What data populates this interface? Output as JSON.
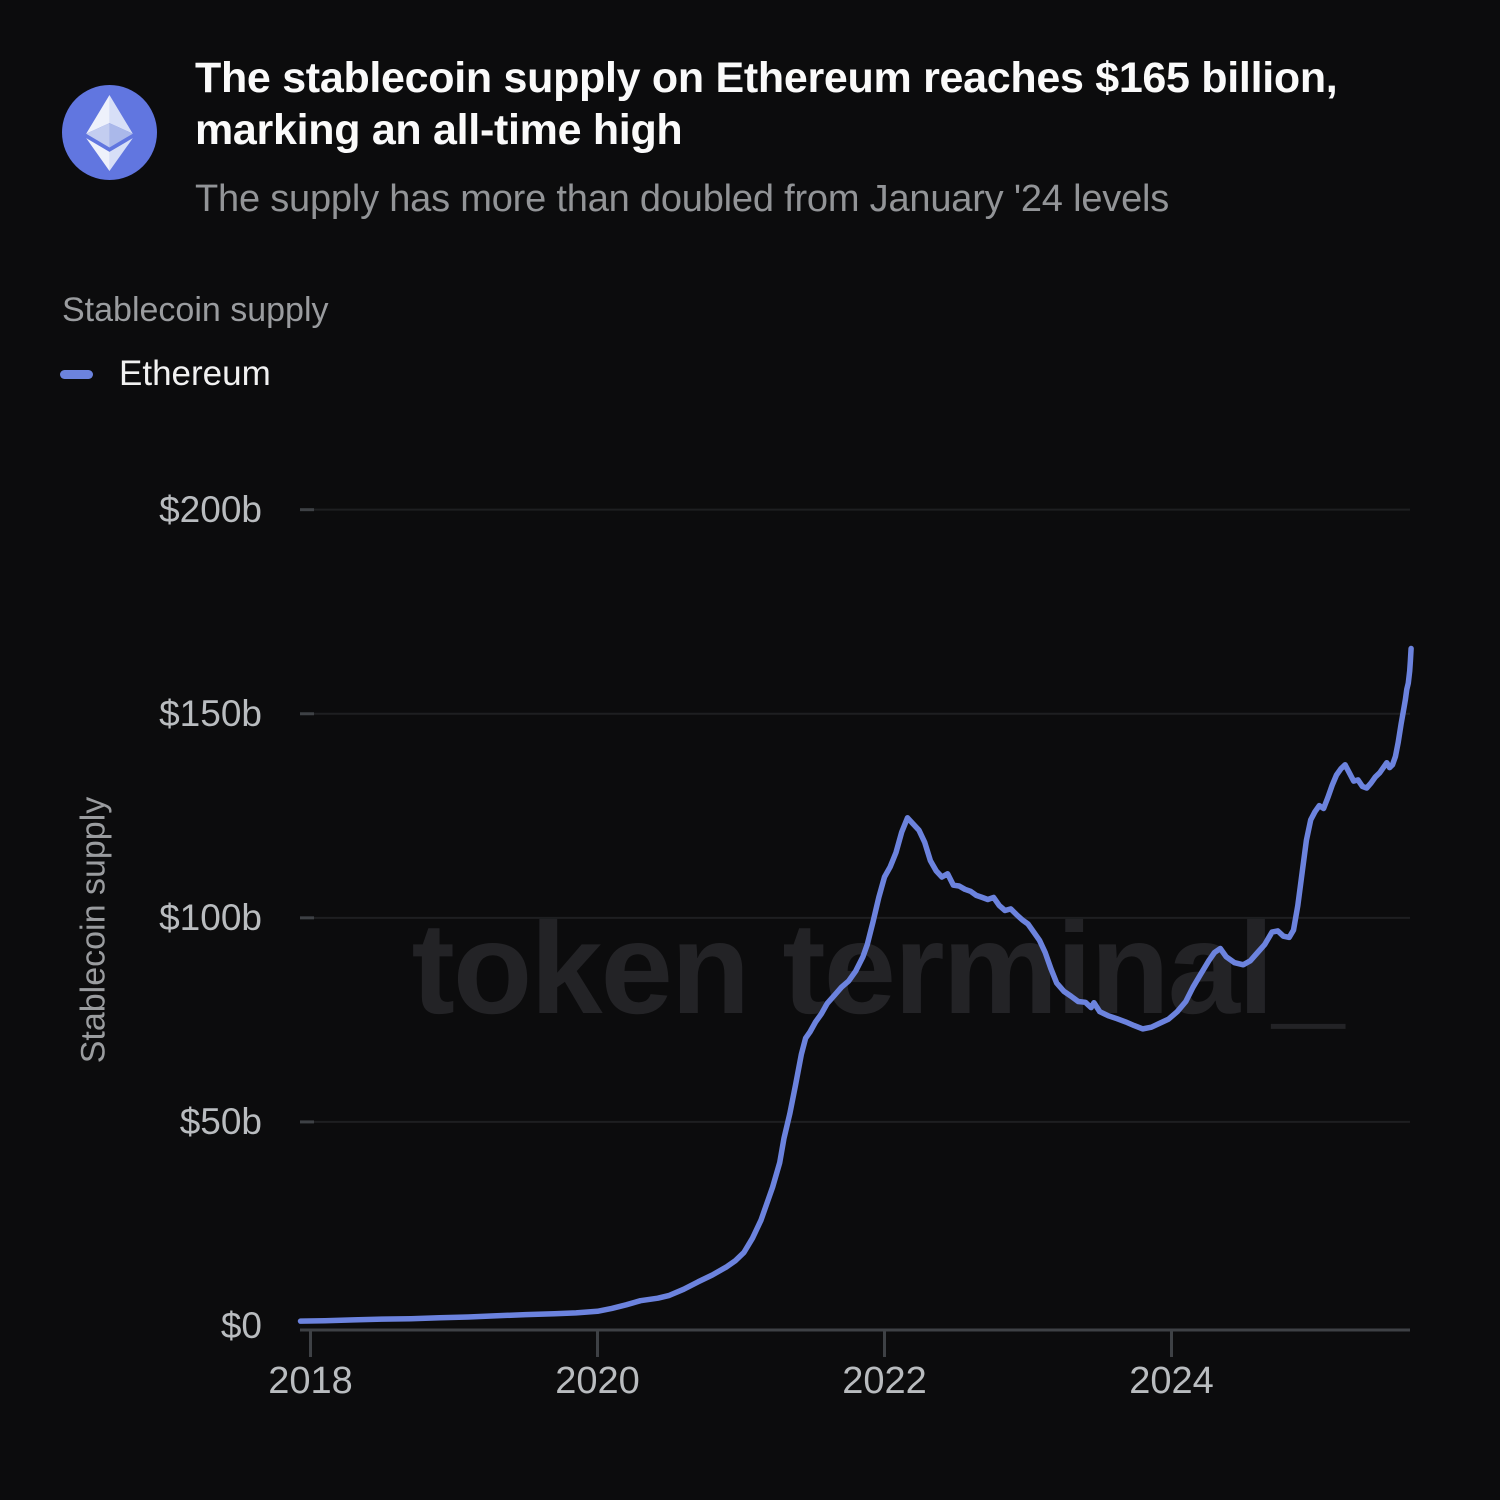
{
  "header": {
    "title": "The stablecoin supply on Ethereum reaches $165 billion,\nmarking an all-time high",
    "subtitle": "The supply has more than doubled from January '24 levels",
    "icon": "ethereum-logo"
  },
  "legend": {
    "title": "Stablecoin supply",
    "series_label": "Ethereum"
  },
  "watermark": "token terminal_",
  "colors": {
    "background": "#0c0c0d",
    "line": "#6c83de",
    "eth_circle": "#6176e0",
    "grid": "#1e1f21",
    "axis": "#3e4145",
    "tick_label": "#b9bcbf",
    "muted_text": "#9a9c9f",
    "subtitle_text": "#929497",
    "title_text": "#fafafa",
    "watermark": "#232326"
  },
  "chart_data": {
    "type": "line",
    "title": "Stablecoin supply",
    "ylabel": "Stablecoin supply",
    "xlabel": "",
    "unit": "USD billions",
    "grid": true,
    "legend_position": "top-left",
    "x_range": [
      2017.93,
      2025.67
    ],
    "y_range": [
      0,
      200
    ],
    "x_ticks": [
      2018,
      2020,
      2022,
      2024
    ],
    "y_ticks": [
      {
        "label": "$0",
        "value": 0
      },
      {
        "label": "$50b",
        "value": 50
      },
      {
        "label": "$100b",
        "value": 100
      },
      {
        "label": "$150b",
        "value": 150
      },
      {
        "label": "$200b",
        "value": 200
      }
    ],
    "series": [
      {
        "name": "Ethereum",
        "color": "#6c83de",
        "points": [
          [
            2017.93,
            1.2
          ],
          [
            2018.1,
            1.3
          ],
          [
            2018.3,
            1.5
          ],
          [
            2018.5,
            1.7
          ],
          [
            2018.7,
            1.8
          ],
          [
            2018.9,
            2.0
          ],
          [
            2019.1,
            2.2
          ],
          [
            2019.3,
            2.5
          ],
          [
            2019.5,
            2.8
          ],
          [
            2019.7,
            3.0
          ],
          [
            2019.85,
            3.2
          ],
          [
            2020.0,
            3.6
          ],
          [
            2020.1,
            4.3
          ],
          [
            2020.2,
            5.2
          ],
          [
            2020.3,
            6.2
          ],
          [
            2020.42,
            6.8
          ],
          [
            2020.5,
            7.5
          ],
          [
            2020.6,
            9.0
          ],
          [
            2020.7,
            10.8
          ],
          [
            2020.8,
            12.5
          ],
          [
            2020.9,
            14.5
          ],
          [
            2020.96,
            16.0
          ],
          [
            2021.02,
            18.0
          ],
          [
            2021.08,
            21.5
          ],
          [
            2021.14,
            26.0
          ],
          [
            2021.18,
            30.0
          ],
          [
            2021.22,
            34.0
          ],
          [
            2021.27,
            40.0
          ],
          [
            2021.3,
            46.0
          ],
          [
            2021.34,
            52.0
          ],
          [
            2021.38,
            59.0
          ],
          [
            2021.42,
            66.5
          ],
          [
            2021.45,
            70.5
          ],
          [
            2021.48,
            72.0
          ],
          [
            2021.52,
            74.5
          ],
          [
            2021.56,
            76.5
          ],
          [
            2021.6,
            79.0
          ],
          [
            2021.65,
            81.0
          ],
          [
            2021.7,
            83.0
          ],
          [
            2021.75,
            84.5
          ],
          [
            2021.8,
            87.0
          ],
          [
            2021.85,
            90.5
          ],
          [
            2021.88,
            93.5
          ],
          [
            2021.92,
            99.0
          ],
          [
            2021.96,
            105.0
          ],
          [
            2022.0,
            110.0
          ],
          [
            2022.04,
            112.5
          ],
          [
            2022.08,
            116.0
          ],
          [
            2022.12,
            121.0
          ],
          [
            2022.16,
            124.5
          ],
          [
            2022.2,
            123.0
          ],
          [
            2022.24,
            121.5
          ],
          [
            2022.28,
            118.5
          ],
          [
            2022.32,
            114.0
          ],
          [
            2022.36,
            111.5
          ],
          [
            2022.4,
            110.0
          ],
          [
            2022.44,
            110.8
          ],
          [
            2022.48,
            108.0
          ],
          [
            2022.52,
            107.8
          ],
          [
            2022.56,
            107.0
          ],
          [
            2022.6,
            106.5
          ],
          [
            2022.64,
            105.5
          ],
          [
            2022.68,
            105.0
          ],
          [
            2022.72,
            104.5
          ],
          [
            2022.76,
            105.0
          ],
          [
            2022.8,
            103.0
          ],
          [
            2022.84,
            101.8
          ],
          [
            2022.88,
            102.2
          ],
          [
            2022.92,
            100.8
          ],
          [
            2022.96,
            99.5
          ],
          [
            2023.0,
            98.5
          ],
          [
            2023.04,
            96.5
          ],
          [
            2023.08,
            94.5
          ],
          [
            2023.12,
            91.5
          ],
          [
            2023.16,
            87.5
          ],
          [
            2023.2,
            84.0
          ],
          [
            2023.25,
            82.0
          ],
          [
            2023.3,
            80.8
          ],
          [
            2023.35,
            79.5
          ],
          [
            2023.4,
            79.3
          ],
          [
            2023.44,
            78.0
          ],
          [
            2023.46,
            79.2
          ],
          [
            2023.5,
            77.0
          ],
          [
            2023.56,
            76.0
          ],
          [
            2023.62,
            75.3
          ],
          [
            2023.68,
            74.5
          ],
          [
            2023.74,
            73.6
          ],
          [
            2023.8,
            72.8
          ],
          [
            2023.86,
            73.2
          ],
          [
            2023.92,
            74.2
          ],
          [
            2023.98,
            75.2
          ],
          [
            2024.04,
            77.0
          ],
          [
            2024.1,
            79.5
          ],
          [
            2024.15,
            83.0
          ],
          [
            2024.2,
            86.0
          ],
          [
            2024.26,
            89.5
          ],
          [
            2024.3,
            91.5
          ],
          [
            2024.34,
            92.5
          ],
          [
            2024.38,
            90.5
          ],
          [
            2024.44,
            89.0
          ],
          [
            2024.5,
            88.5
          ],
          [
            2024.55,
            89.5
          ],
          [
            2024.6,
            91.5
          ],
          [
            2024.65,
            93.5
          ],
          [
            2024.7,
            96.5
          ],
          [
            2024.74,
            96.8
          ],
          [
            2024.78,
            95.5
          ],
          [
            2024.82,
            95.2
          ],
          [
            2024.85,
            97.0
          ],
          [
            2024.88,
            103.0
          ],
          [
            2024.91,
            111.0
          ],
          [
            2024.94,
            119.0
          ],
          [
            2024.97,
            124.0
          ],
          [
            2025.0,
            126.0
          ],
          [
            2025.03,
            127.5
          ],
          [
            2025.06,
            126.8
          ],
          [
            2025.09,
            129.5
          ],
          [
            2025.12,
            132.5
          ],
          [
            2025.15,
            135.0
          ],
          [
            2025.18,
            136.5
          ],
          [
            2025.21,
            137.5
          ],
          [
            2025.24,
            135.5
          ],
          [
            2025.27,
            133.5
          ],
          [
            2025.3,
            133.8
          ],
          [
            2025.33,
            132.2
          ],
          [
            2025.36,
            131.8
          ],
          [
            2025.39,
            133.0
          ],
          [
            2025.42,
            134.5
          ],
          [
            2025.45,
            135.5
          ],
          [
            2025.48,
            137.0
          ],
          [
            2025.5,
            138.0
          ],
          [
            2025.52,
            136.8
          ],
          [
            2025.54,
            137.5
          ],
          [
            2025.56,
            139.5
          ],
          [
            2025.58,
            143.0
          ],
          [
            2025.6,
            147.5
          ],
          [
            2025.62,
            151.5
          ],
          [
            2025.63,
            153.5
          ],
          [
            2025.64,
            156.0
          ],
          [
            2025.65,
            157.5
          ],
          [
            2025.66,
            160.5
          ],
          [
            2025.665,
            163.0
          ],
          [
            2025.67,
            166.0
          ]
        ]
      }
    ]
  }
}
